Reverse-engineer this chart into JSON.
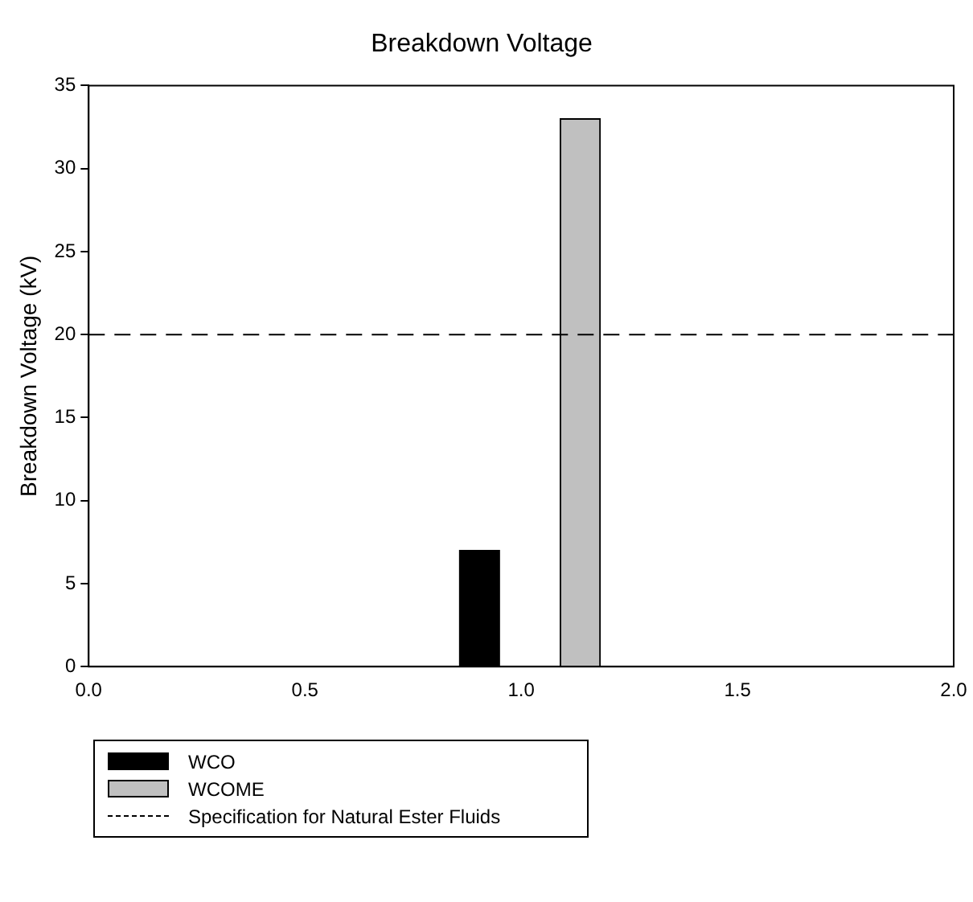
{
  "chart_data": {
    "type": "bar",
    "title": "Breakdown Voltage",
    "ylabel": "Breakdown Voltage (kV)",
    "series": [
      {
        "name": "WCO",
        "color": "#000000",
        "x": [
          0.95
        ],
        "values": [
          7
        ]
      },
      {
        "name": "WCOME",
        "color": "#c0c0c0",
        "x": [
          1.09
        ],
        "values": [
          33
        ]
      }
    ],
    "xlim": [
      0,
      2
    ],
    "xticks": [
      {
        "value": 0,
        "label": "0.0"
      },
      {
        "value": 0.5,
        "label": "0.5"
      },
      {
        "value": 1,
        "label": "1.0"
      },
      {
        "value": 1.5,
        "label": "1.5"
      },
      {
        "value": 2,
        "label": "2.0"
      }
    ],
    "ylim": [
      0,
      35
    ],
    "yticks": [
      0,
      5,
      10,
      15,
      20,
      25,
      30,
      35
    ],
    "ref_lines": [
      {
        "axis": "y",
        "value": 20,
        "label": "Specification for Natural Ester Fluids",
        "line_style": "dashed",
        "color": "#000000"
      }
    ],
    "grid": false,
    "legend": "bottom left"
  }
}
